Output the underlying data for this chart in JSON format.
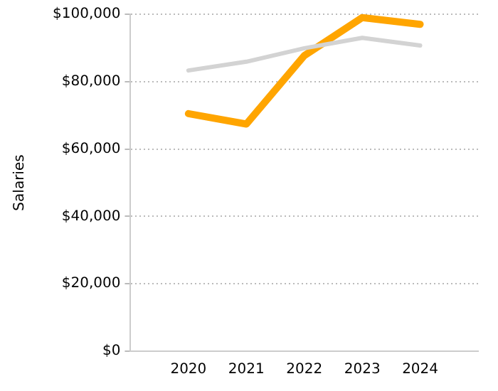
{
  "chart_data": {
    "type": "line",
    "ylabel": "Salaries",
    "x": [
      2020,
      2021,
      2022,
      2023,
      2024
    ],
    "xlim": [
      2019,
      2025
    ],
    "xticks": [
      2020,
      2021,
      2022,
      2023,
      2024
    ],
    "ylim": [
      0,
      100000
    ],
    "yticks": [
      {
        "value": 0,
        "label": "$0"
      },
      {
        "value": 20000,
        "label": "$20,000"
      },
      {
        "value": 40000,
        "label": "$40,000"
      },
      {
        "value": 60000,
        "label": "$60,000"
      },
      {
        "value": 80000,
        "label": "$80,000"
      },
      {
        "value": 100000,
        "label": "$100,000"
      }
    ],
    "grid": "y",
    "legend": false,
    "marker": "none",
    "line_style": "solid",
    "series": [
      {
        "color": "#d3d3d3",
        "values": [
          83300,
          85900,
          89900,
          93000,
          90700
        ]
      },
      {
        "color": "#ffa500",
        "values": [
          70500,
          67400,
          87700,
          99000,
          97000
        ]
      }
    ]
  }
}
